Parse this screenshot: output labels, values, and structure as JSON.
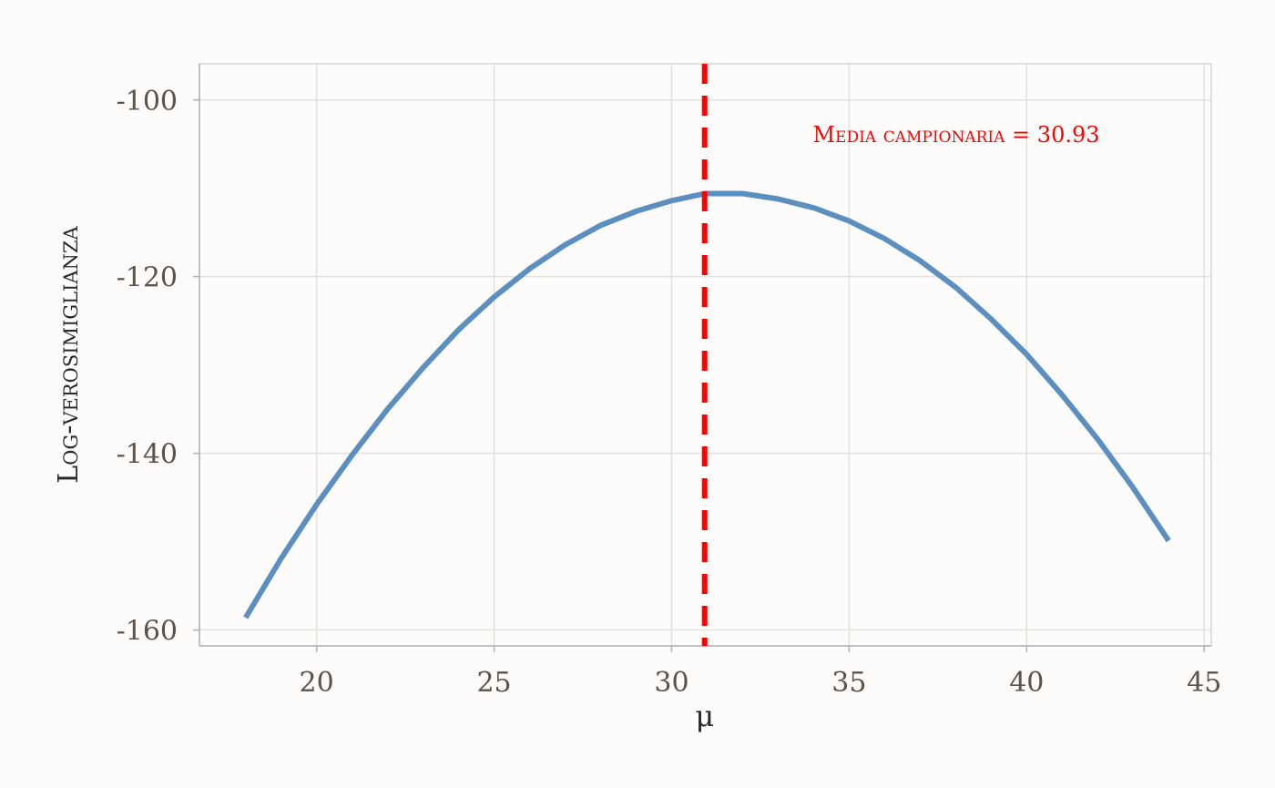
{
  "chart_data": {
    "type": "line",
    "xlabel": "μ",
    "ylabel": "Log-verosimiglianza",
    "xlim": [
      16.7,
      45.2
    ],
    "ylim": [
      -161.8,
      -95.9
    ],
    "x_ticks": [
      20,
      25,
      30,
      35,
      40,
      45
    ],
    "y_ticks": [
      -100,
      -120,
      -140,
      -160
    ],
    "x_tick_labels": [
      "20",
      "25",
      "30",
      "35",
      "40",
      "45"
    ],
    "y_tick_labels": [
      "-100",
      "-120",
      "-140",
      "-160"
    ],
    "grid": true,
    "series": [
      {
        "x": [
          18,
          19,
          20,
          21,
          22,
          23,
          24,
          25,
          26,
          27,
          28,
          29,
          30,
          30.93,
          32,
          33,
          34,
          35,
          36,
          37,
          38,
          39,
          40,
          41,
          42,
          43,
          44
        ],
        "y": [
          -158.6,
          -151.9,
          -145.8,
          -140.2,
          -135.0,
          -130.3,
          -126.0,
          -122.3,
          -119.1,
          -116.4,
          -114.2,
          -112.6,
          -111.4,
          -110.6,
          -110.6,
          -111.2,
          -112.2,
          -113.7,
          -115.7,
          -118.2,
          -121.2,
          -124.8,
          -128.8,
          -133.4,
          -138.4,
          -143.9,
          -149.9
        ],
        "color": "#5b8fbf"
      }
    ],
    "annotation": {
      "vline_x": 30.93,
      "vline_color": "#ff0000",
      "text": "Media campionaria = 30.93",
      "text_color": "#ff0000"
    }
  }
}
